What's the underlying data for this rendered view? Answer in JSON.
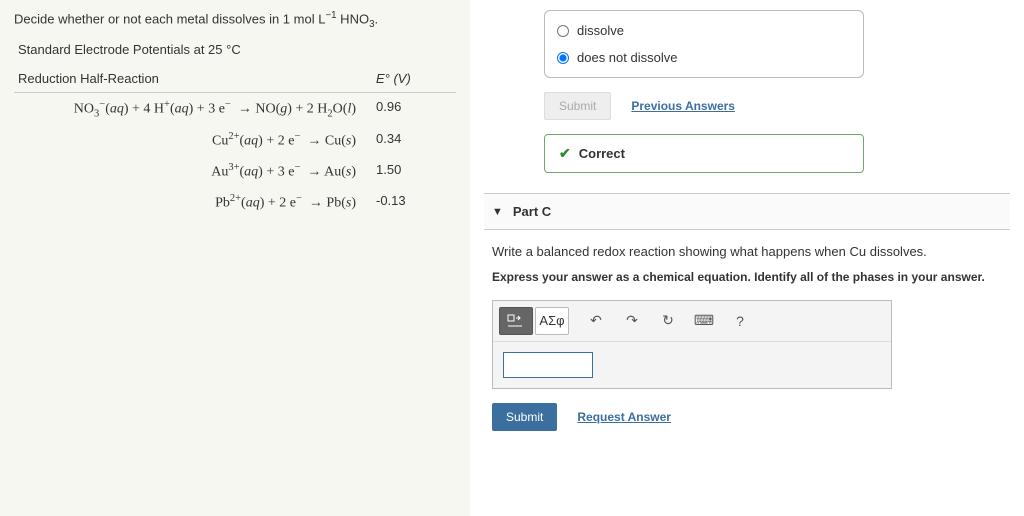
{
  "left": {
    "prompt_html": "Decide whether or not each metal dissolves in 1 mol L<sup>−1</sup> HNO<sub>3</sub>.",
    "subhead_html": "Standard Electrode Potentials at 25 °C",
    "col1": "Reduction Half-Reaction",
    "col2_html": "<i>E</i>° (V)",
    "rows": [
      {
        "rx_html": "NO<sub>3</sub><sup>−</sup>(<i>aq</i>) + 4 H<sup>+</sup>(<i>aq</i>) + 3 e<sup>−</sup>&nbsp;&nbsp;→ NO(<i>g</i>) + 2 H<sub>2</sub>O(<i>l</i>)",
        "e": "0.96"
      },
      {
        "rx_html": "Cu<sup>2+</sup>(<i>aq</i>) + 2 e<sup>−</sup>&nbsp;&nbsp;→ Cu(<i>s</i>)",
        "e": "0.34"
      },
      {
        "rx_html": "Au<sup>3+</sup>(<i>aq</i>) + 3 e<sup>−</sup>&nbsp;&nbsp;→ Au(<i>s</i>)",
        "e": "1.50"
      },
      {
        "rx_html": "Pb<sup>2+</sup>(<i>aq</i>) + 2 e<sup>−</sup>&nbsp;&nbsp;→ Pb(<i>s</i>)",
        "e": "-0.13"
      }
    ]
  },
  "right": {
    "options": [
      {
        "label": "dissolve",
        "checked": false
      },
      {
        "label": "does not dissolve",
        "checked": true
      }
    ],
    "submit_disabled_label": "Submit",
    "prev_answers": "Previous Answers",
    "correct": "Correct",
    "partc_title": "Part C",
    "partc_prompt_html": "Write a balanced redox reaction showing what happens when Cu dissolves.",
    "partc_instr": "Express your answer as a chemical equation. Identify all of the phases in your answer.",
    "greek": "ΑΣφ",
    "help": "?",
    "submit_label": "Submit",
    "request_answer": "Request Answer"
  }
}
